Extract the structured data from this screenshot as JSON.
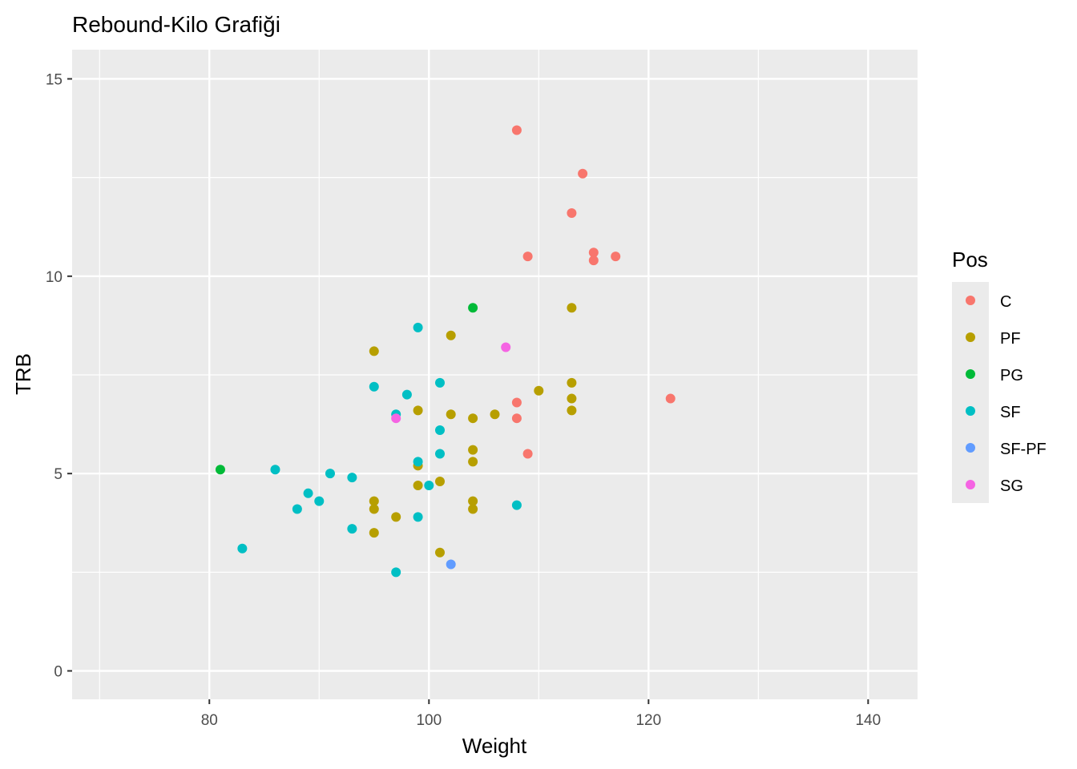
{
  "chart_data": {
    "type": "scatter",
    "title": "Rebound-Kilo Grafiği",
    "xlabel": "Weight",
    "ylabel": "TRB",
    "xlim": [
      67.5,
      144.5
    ],
    "ylim": [
      -0.72,
      15.74
    ],
    "x_ticks": [
      80,
      100,
      120,
      140
    ],
    "x_tick_labels": [
      "80",
      "100",
      "120",
      "140"
    ],
    "y_ticks": [
      0,
      5,
      10,
      15
    ],
    "y_tick_labels": [
      "0",
      "5",
      "10",
      "15"
    ],
    "grid": true,
    "legend": {
      "title": "Pos",
      "placement": "right",
      "entries": [
        {
          "label": "C",
          "color": "#F8766D"
        },
        {
          "label": "PF",
          "color": "#B79F00"
        },
        {
          "label": "PG",
          "color": "#00BA38"
        },
        {
          "label": "SF",
          "color": "#00BFC4"
        },
        {
          "label": "SF-PF",
          "color": "#619CFF"
        },
        {
          "label": "SG",
          "color": "#F564E3"
        }
      ]
    },
    "series": [
      {
        "name": "C",
        "color": "#F8766D",
        "points": [
          [
            108,
            13.7
          ],
          [
            114,
            12.6
          ],
          [
            113,
            11.6
          ],
          [
            109,
            10.5
          ],
          [
            115,
            10.6
          ],
          [
            115,
            10.4
          ],
          [
            117,
            10.5
          ],
          [
            122,
            6.9
          ],
          [
            108,
            6.8
          ],
          [
            108,
            6.4
          ],
          [
            109,
            5.5
          ]
        ]
      },
      {
        "name": "PF",
        "color": "#B79F00",
        "points": [
          [
            113,
            9.2
          ],
          [
            102,
            8.5
          ],
          [
            95,
            8.1
          ],
          [
            113,
            7.3
          ],
          [
            110,
            7.1
          ],
          [
            113,
            6.9
          ],
          [
            113,
            6.6
          ],
          [
            99,
            6.6
          ],
          [
            102,
            6.5
          ],
          [
            104,
            6.4
          ],
          [
            106,
            6.5
          ],
          [
            104,
            5.6
          ],
          [
            104,
            5.3
          ],
          [
            99,
            5.2
          ],
          [
            101,
            4.8
          ],
          [
            99,
            4.7
          ],
          [
            95,
            4.3
          ],
          [
            95,
            4.1
          ],
          [
            104,
            4.3
          ],
          [
            104,
            4.1
          ],
          [
            97,
            3.9
          ],
          [
            95,
            3.5
          ],
          [
            101,
            3.0
          ]
        ]
      },
      {
        "name": "PG",
        "color": "#00BA38",
        "points": [
          [
            104,
            9.2
          ],
          [
            81,
            5.1
          ]
        ]
      },
      {
        "name": "SF",
        "color": "#00BFC4",
        "points": [
          [
            99,
            8.7
          ],
          [
            101,
            7.3
          ],
          [
            95,
            7.2
          ],
          [
            98,
            7.0
          ],
          [
            97,
            6.5
          ],
          [
            101,
            6.1
          ],
          [
            101,
            5.5
          ],
          [
            99,
            5.3
          ],
          [
            86,
            5.1
          ],
          [
            91,
            5.0
          ],
          [
            93,
            4.9
          ],
          [
            100,
            4.7
          ],
          [
            89,
            4.5
          ],
          [
            90,
            4.3
          ],
          [
            88,
            4.1
          ],
          [
            108,
            4.2
          ],
          [
            99,
            3.9
          ],
          [
            93,
            3.6
          ],
          [
            83,
            3.1
          ],
          [
            97,
            2.5
          ]
        ]
      },
      {
        "name": "SF-PF",
        "color": "#619CFF",
        "points": [
          [
            102,
            2.7
          ]
        ]
      },
      {
        "name": "SG",
        "color": "#F564E3",
        "points": [
          [
            107,
            8.2
          ],
          [
            97,
            6.4
          ]
        ]
      }
    ]
  }
}
